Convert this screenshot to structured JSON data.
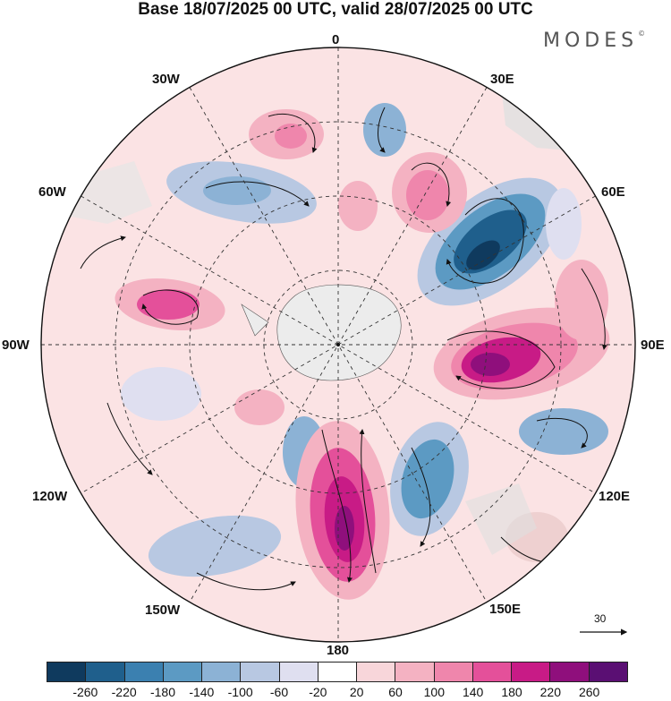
{
  "header": {
    "title": "Base 18/07/2025 00 UTC, valid 28/07/2025 00 UTC"
  },
  "logo": {
    "text": "MODES",
    "mark": "©"
  },
  "map": {
    "projection": "south-polar-stereographic",
    "longitude_labels": [
      "0",
      "30E",
      "60E",
      "90E",
      "120E",
      "150E",
      "180",
      "150W",
      "120W",
      "90W",
      "60W",
      "30W"
    ]
  },
  "vector_scale": {
    "label": "30"
  },
  "colorbar": {
    "colors": [
      "#0f3a5e",
      "#1f5f8c",
      "#3b80b0",
      "#5c9ac3",
      "#8cb2d5",
      "#b8c8e2",
      "#dfdff0",
      "#ffffff",
      "#f8d6da",
      "#f4b2c2",
      "#ef86ac",
      "#e4509a",
      "#c81b86",
      "#8f0f7c",
      "#5a0f73"
    ],
    "tick_labels": [
      "-260",
      "-220",
      "-180",
      "-140",
      "-100",
      "-60",
      "-20",
      "20",
      "60",
      "100",
      "140",
      "180",
      "220",
      "260"
    ]
  }
}
